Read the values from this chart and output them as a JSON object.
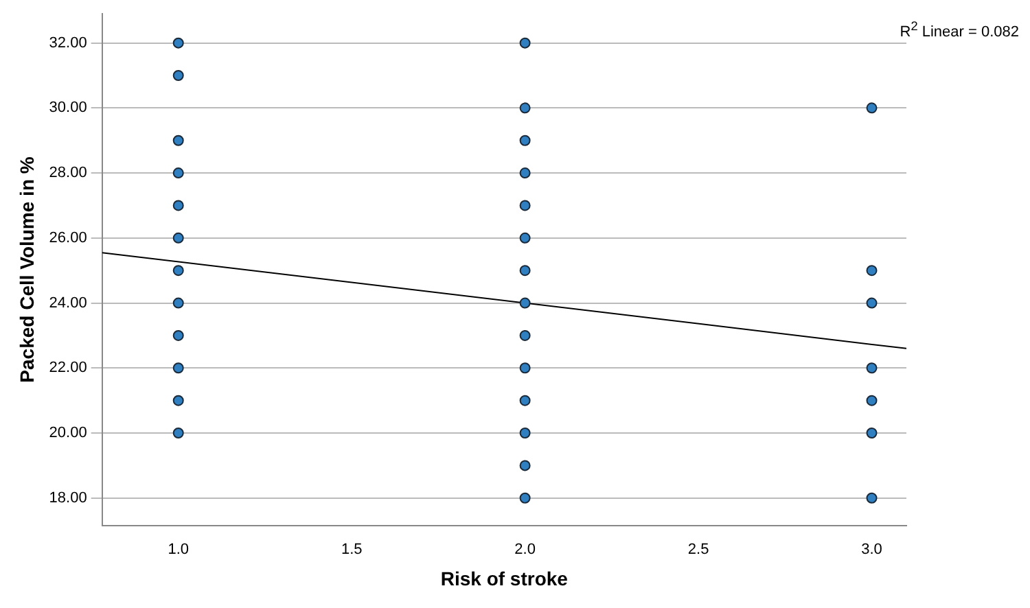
{
  "chart_data": {
    "type": "scatter",
    "xlabel": "Risk of stroke",
    "ylabel": "Packed Cell Volume in %",
    "annotations": [
      "R$^{2}$ Linear = 0.082"
    ],
    "xlim": [
      0.78,
      3.1
    ],
    "xticks": [
      {
        "value": 1,
        "label": "1.0"
      },
      {
        "value": 1.5,
        "label": "1.5"
      },
      {
        "value": 2,
        "label": "2.0"
      },
      {
        "value": 2.5,
        "label": "2.5"
      },
      {
        "value": 3,
        "label": "3.0"
      }
    ],
    "ylim": [
      17.15,
      32.9
    ],
    "yticks": [
      {
        "value": 18,
        "label": "18.00"
      },
      {
        "value": 20,
        "label": "20.00"
      },
      {
        "value": 22,
        "label": "22.00"
      },
      {
        "value": 24,
        "label": "24.00"
      },
      {
        "value": 26,
        "label": "26.00"
      },
      {
        "value": 28,
        "label": "28.00"
      },
      {
        "value": 30,
        "label": "30.00"
      },
      {
        "value": 32,
        "label": "32.00"
      }
    ],
    "grid": "y",
    "legend": false,
    "marker": "circle",
    "series": [
      {
        "color": "#2f7fc1",
        "x": [
          1,
          1,
          1,
          1,
          1,
          1,
          1,
          1,
          1,
          1,
          1,
          1,
          2,
          2,
          2,
          2,
          2,
          2,
          2,
          2,
          2,
          2,
          2,
          2,
          2,
          2,
          3,
          3,
          3,
          3,
          3,
          3,
          3
        ],
        "values": [
          32,
          31,
          29,
          28,
          27,
          26,
          25,
          24,
          23,
          22,
          21,
          20,
          32,
          30,
          29,
          28,
          27,
          26,
          25,
          24,
          23,
          22,
          21,
          20,
          19,
          18,
          30,
          25,
          24,
          22,
          21,
          20,
          18
        ]
      },
      {
        "type": "line",
        "color": "#000000",
        "marker": "none",
        "x": [
          0.78,
          3.1
        ],
        "values": [
          25.55,
          22.6
        ]
      }
    ]
  }
}
